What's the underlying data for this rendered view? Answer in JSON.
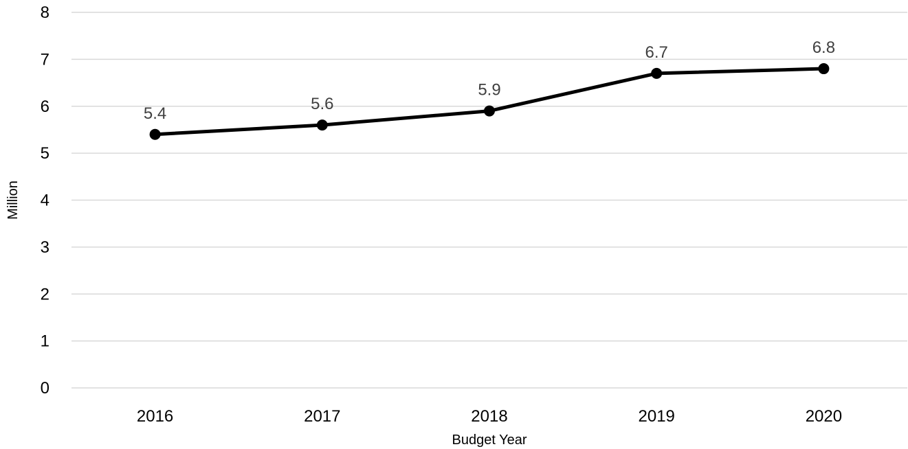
{
  "chart_data": {
    "type": "line",
    "title": "",
    "xlabel": "Budget Year",
    "ylabel": "Million",
    "categories": [
      "2016",
      "2017",
      "2018",
      "2019",
      "2020"
    ],
    "series": [
      {
        "name": "",
        "values": [
          5.4,
          5.6,
          5.9,
          6.7,
          6.8
        ],
        "data_labels": [
          "5.4",
          "5.6",
          "5.9",
          "6.7",
          "6.8"
        ],
        "color": "#000000",
        "marker": "circle"
      }
    ],
    "ylim": [
      0,
      8
    ],
    "y_ticks": [
      "0",
      "1",
      "2",
      "3",
      "4",
      "5",
      "6",
      "7",
      "8"
    ],
    "grid": true,
    "legend": "none"
  }
}
